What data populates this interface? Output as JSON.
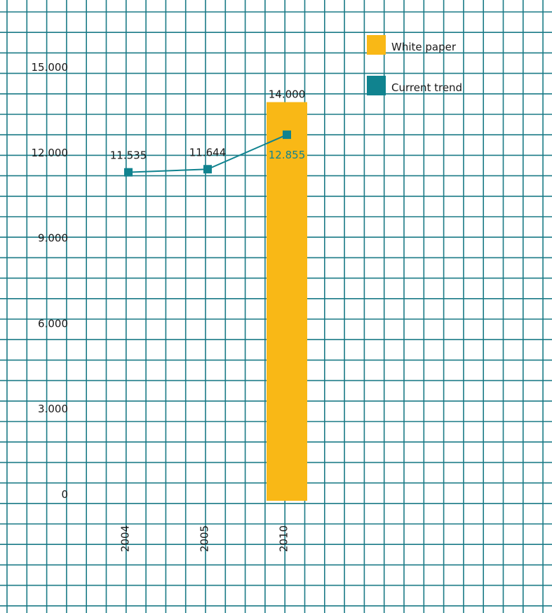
{
  "colors": {
    "grid": "#1a7a86",
    "white_paper": "#f9b816",
    "current_trend": "#10838f",
    "text": "#1a1a1a"
  },
  "chart_data": {
    "type": "bar",
    "title": "",
    "xlabel": "",
    "ylabel": "",
    "ylim": [
      0,
      15000
    ],
    "y_ticks": [
      0,
      3000,
      6000,
      9000,
      12000,
      15000
    ],
    "y_tick_labels": [
      "0",
      "3.000",
      "6.000",
      "9.000",
      "12.000",
      "15.000"
    ],
    "categories": [
      "2004",
      "2005",
      "2010"
    ],
    "legend_position": "top-right",
    "grid": true,
    "series": [
      {
        "name": "White paper",
        "type": "bar",
        "values": [
          null,
          null,
          14000
        ],
        "labels": [
          "",
          "",
          "14.000"
        ]
      },
      {
        "name": "Current trend",
        "type": "line",
        "values": [
          11535,
          11644,
          12855
        ],
        "labels": [
          "11.535",
          "11.644",
          "12.855"
        ]
      }
    ]
  }
}
